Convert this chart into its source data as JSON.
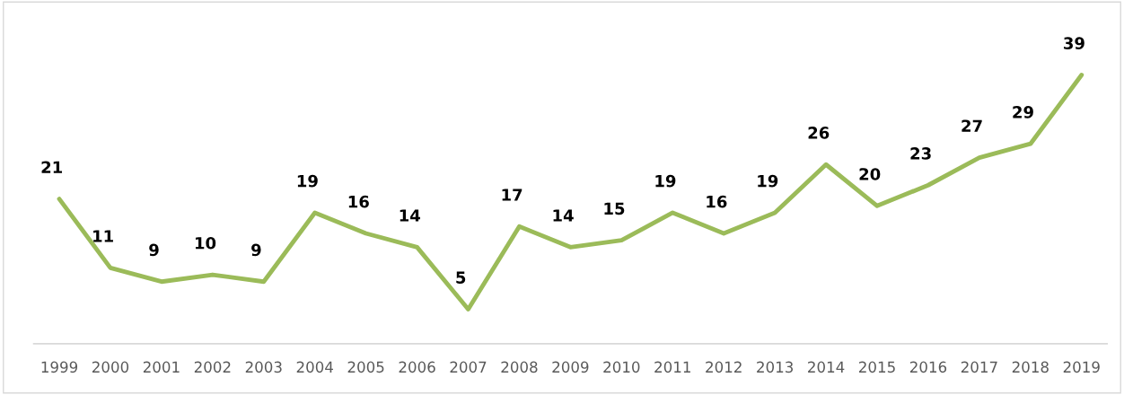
{
  "chart_data": {
    "type": "line",
    "categories": [
      "1999",
      "2000",
      "2001",
      "2002",
      "2003",
      "2004",
      "2005",
      "2006",
      "2007",
      "2008",
      "2009",
      "2010",
      "2011",
      "2012",
      "2013",
      "2014",
      "2015",
      "2016",
      "2017",
      "2018",
      "2019"
    ],
    "series": [
      {
        "color": "#9bbb59",
        "values": [
          21,
          11,
          9,
          10,
          9,
          19,
          16,
          14,
          5,
          17,
          14,
          15,
          19,
          16,
          19,
          26,
          20,
          23,
          27,
          29,
          39
        ]
      }
    ],
    "data_labels": true,
    "grid": false,
    "legend": false,
    "marker": "none",
    "line_style": "solid",
    "tick_labels": "x"
  }
}
